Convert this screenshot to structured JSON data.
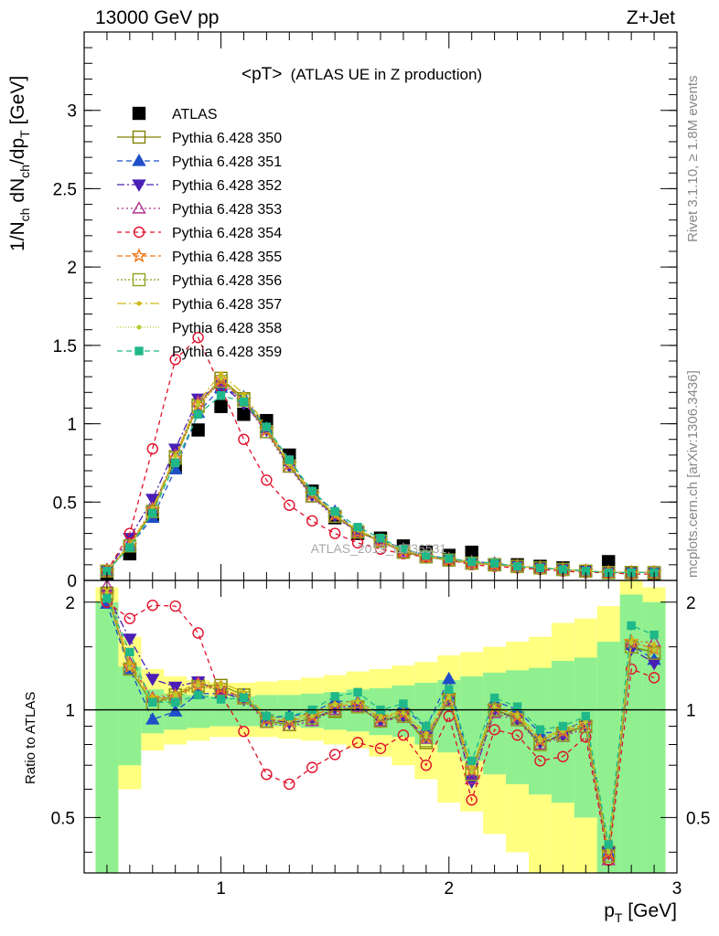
{
  "header": {
    "left": "13000 GeV pp",
    "right": "Z+Jet"
  },
  "plot_title_main": "<pT>",
  "plot_title_sub": "(ATLAS UE in Z production)",
  "watermark": "ATLAS_2019_I1736531",
  "side_text_top": "Rivet 3.1.10, ≥ 1.8M events",
  "side_text_bottom": "mcplots.cern.ch [arXiv:1306.3436]",
  "ylabel_top": {
    "a": "1/N",
    "a_sub": "ch",
    "b": " dN",
    "b_sub": "ch",
    "c": "/dp",
    "c_sub": "T",
    "d": " [GeV]"
  },
  "ylabel_bottom": "Ratio to ATLAS",
  "xlabel": {
    "p": "p",
    "sub": "T",
    "rest": " [GeV]"
  },
  "chart_data": [
    {
      "type": "line",
      "panel": "main",
      "xlim": [
        0.4,
        3.0
      ],
      "ylim": [
        0,
        3.5
      ],
      "x_ticks": [
        "1",
        "2",
        "3"
      ],
      "y_ticks": [
        "0",
        "0.5",
        "1",
        "1.5",
        "2",
        "2.5",
        "3"
      ],
      "legend_position": "top-left",
      "x": [
        0.5,
        0.6,
        0.7,
        0.8,
        0.9,
        1.0,
        1.1,
        1.2,
        1.3,
        1.4,
        1.5,
        1.6,
        1.7,
        1.8,
        1.9,
        2.0,
        2.1,
        2.2,
        2.3,
        2.4,
        2.5,
        2.6,
        2.7,
        2.8,
        2.9
      ],
      "series": [
        {
          "name": "ATLAS",
          "color": "#000000",
          "marker": "square-filled",
          "values": [
            0.03,
            0.17,
            0.42,
            0.72,
            0.96,
            1.11,
            1.06,
            1.02,
            0.8,
            0.57,
            0.4,
            0.3,
            0.27,
            0.22,
            0.18,
            0.16,
            0.18,
            0.1,
            0.1,
            0.09,
            0.08,
            0.06,
            0.12,
            0.05,
            0.04
          ]
        },
        {
          "name": "Pythia 6.428 350",
          "color": "#808000",
          "marker": "square-open",
          "dash": "",
          "values": [
            0.06,
            0.22,
            0.44,
            0.79,
            1.12,
            1.29,
            1.16,
            0.95,
            0.73,
            0.54,
            0.41,
            0.31,
            0.25,
            0.18,
            0.15,
            0.13,
            0.11,
            0.1,
            0.09,
            0.08,
            0.07,
            0.06,
            0.05,
            0.05,
            0.05
          ]
        },
        {
          "name": "Pythia 6.428 351",
          "color": "#1f4fc8",
          "marker": "triangle-up-filled",
          "dash": "6,4",
          "values": [
            0.06,
            0.22,
            0.4,
            0.71,
            1.07,
            1.23,
            1.17,
            0.97,
            0.76,
            0.56,
            0.44,
            0.31,
            0.26,
            0.2,
            0.16,
            0.14,
            0.12,
            0.11,
            0.09,
            0.08,
            0.07,
            0.06,
            0.05,
            0.05,
            0.05
          ]
        },
        {
          "name": "Pythia 6.428 352",
          "color": "#4a1fb4",
          "marker": "triangle-down-filled",
          "dash": "8,3,2,3",
          "values": [
            0.06,
            0.27,
            0.52,
            0.84,
            1.16,
            1.25,
            1.13,
            0.96,
            0.73,
            0.54,
            0.41,
            0.31,
            0.25,
            0.19,
            0.15,
            0.13,
            0.11,
            0.1,
            0.09,
            0.08,
            0.07,
            0.06,
            0.05,
            0.05,
            0.05
          ]
        },
        {
          "name": "Pythia 6.428 353",
          "color": "#b0308a",
          "marker": "triangle-up-open",
          "dash": "2,3",
          "values": [
            0.07,
            0.23,
            0.46,
            0.8,
            1.14,
            1.27,
            1.14,
            0.94,
            0.72,
            0.53,
            0.4,
            0.31,
            0.25,
            0.18,
            0.15,
            0.13,
            0.11,
            0.1,
            0.09,
            0.08,
            0.07,
            0.06,
            0.05,
            0.05,
            0.05
          ]
        },
        {
          "name": "Pythia 6.428 354",
          "color": "#e0102a",
          "marker": "circle-open",
          "dash": "5,4",
          "values": [
            0.06,
            0.3,
            0.84,
            1.41,
            1.55,
            1.23,
            0.9,
            0.64,
            0.48,
            0.38,
            0.3,
            0.24,
            0.2,
            0.17,
            0.15,
            0.13,
            0.1,
            0.09,
            0.08,
            0.07,
            0.06,
            0.05,
            0.05,
            0.04,
            0.04
          ]
        },
        {
          "name": "Pythia 6.428 355",
          "color": "#f07818",
          "marker": "star-open",
          "dash": "6,3",
          "values": [
            0.06,
            0.22,
            0.45,
            0.78,
            1.12,
            1.28,
            1.15,
            0.96,
            0.74,
            0.55,
            0.42,
            0.31,
            0.25,
            0.19,
            0.15,
            0.13,
            0.11,
            0.1,
            0.09,
            0.08,
            0.07,
            0.06,
            0.05,
            0.05,
            0.05
          ]
        },
        {
          "name": "Pythia 6.428 356",
          "color": "#90a020",
          "marker": "square-open",
          "dash": "2,2",
          "values": [
            0.06,
            0.22,
            0.44,
            0.78,
            1.11,
            1.27,
            1.15,
            0.95,
            0.73,
            0.54,
            0.41,
            0.31,
            0.25,
            0.18,
            0.15,
            0.13,
            0.11,
            0.1,
            0.09,
            0.08,
            0.07,
            0.06,
            0.05,
            0.05,
            0.05
          ]
        },
        {
          "name": "Pythia 6.428 357",
          "color": "#d0b818",
          "marker": "dot",
          "dash": "10,3,2,3",
          "values": [
            0.06,
            0.23,
            0.46,
            0.8,
            1.14,
            1.32,
            1.19,
            0.98,
            0.75,
            0.56,
            0.42,
            0.32,
            0.26,
            0.19,
            0.16,
            0.14,
            0.12,
            0.1,
            0.09,
            0.08,
            0.07,
            0.06,
            0.05,
            0.05,
            0.05
          ]
        },
        {
          "name": "Pythia 6.428 358",
          "color": "#b8cc30",
          "marker": "dot",
          "dash": "1,2",
          "values": [
            0.06,
            0.22,
            0.44,
            0.79,
            1.12,
            1.29,
            1.17,
            0.97,
            0.74,
            0.55,
            0.42,
            0.32,
            0.26,
            0.19,
            0.15,
            0.13,
            0.11,
            0.1,
            0.09,
            0.08,
            0.07,
            0.06,
            0.05,
            0.05,
            0.05
          ]
        },
        {
          "name": "Pythia 6.428 359",
          "color": "#20b888",
          "marker": "square-filled-small",
          "dash": "6,4",
          "values": [
            0.06,
            0.21,
            0.43,
            0.75,
            1.06,
            1.18,
            1.14,
            0.98,
            0.77,
            0.57,
            0.44,
            0.34,
            0.27,
            0.2,
            0.16,
            0.14,
            0.12,
            0.11,
            0.09,
            0.08,
            0.07,
            0.06,
            0.05,
            0.05,
            0.05
          ]
        }
      ]
    },
    {
      "type": "line",
      "panel": "ratio",
      "xlim": [
        0.4,
        3.0
      ],
      "ylim": [
        0.35,
        2.3
      ],
      "x_ticks": [
        "1",
        "2",
        "3"
      ],
      "y_ticks": [
        "0.5",
        "1",
        "2"
      ],
      "reference_line": 1,
      "bin_edges": [
        0.45,
        0.55,
        0.65,
        0.75,
        0.85,
        0.95,
        1.05,
        1.15,
        1.25,
        1.35,
        1.45,
        1.55,
        1.65,
        1.75,
        1.85,
        1.95,
        2.05,
        2.15,
        2.25,
        2.35,
        2.45,
        2.55,
        2.65,
        2.75,
        2.85,
        2.95
      ],
      "band_yellow_low": [
        0.35,
        0.6,
        0.77,
        0.8,
        0.82,
        0.84,
        0.84,
        0.84,
        0.83,
        0.82,
        0.8,
        0.78,
        0.74,
        0.7,
        0.64,
        0.55,
        0.52,
        0.45,
        0.4,
        0.35,
        0.35,
        0.35,
        0.35,
        0.35,
        0.35
      ],
      "band_yellow_high": [
        2.2,
        1.6,
        1.3,
        1.24,
        1.21,
        1.19,
        1.19,
        1.2,
        1.21,
        1.23,
        1.25,
        1.28,
        1.3,
        1.33,
        1.36,
        1.42,
        1.45,
        1.5,
        1.55,
        1.6,
        1.75,
        1.8,
        1.95,
        2.3,
        2.2
      ],
      "band_green_low": [
        0.35,
        0.7,
        0.86,
        0.88,
        0.89,
        0.9,
        0.9,
        0.9,
        0.9,
        0.89,
        0.88,
        0.87,
        0.85,
        0.84,
        0.8,
        0.76,
        0.72,
        0.66,
        0.62,
        0.58,
        0.55,
        0.5,
        0.35,
        0.35,
        0.35
      ],
      "band_green_high": [
        2.0,
        1.32,
        1.14,
        1.11,
        1.1,
        1.09,
        1.09,
        1.1,
        1.1,
        1.11,
        1.12,
        1.14,
        1.15,
        1.17,
        1.19,
        1.21,
        1.24,
        1.27,
        1.29,
        1.31,
        1.37,
        1.4,
        1.55,
        2.1,
        2.0
      ],
      "x": [
        0.5,
        0.6,
        0.7,
        0.8,
        0.9,
        1.0,
        1.1,
        1.2,
        1.3,
        1.4,
        1.5,
        1.6,
        1.7,
        1.8,
        1.9,
        2.0,
        2.1,
        2.2,
        2.3,
        2.4,
        2.5,
        2.6,
        2.7,
        2.8,
        2.9
      ],
      "series": [
        {
          "name": "Pythia 6.428 350",
          "color": "#808000",
          "marker": "square-open",
          "dash": "",
          "values": [
            2.12,
            1.3,
            1.04,
            1.1,
            1.17,
            1.17,
            1.1,
            0.93,
            0.91,
            0.95,
            0.99,
            1.02,
            0.93,
            0.97,
            0.81,
            1.07,
            0.68,
            1.0,
            0.95,
            0.8,
            0.86,
            0.9,
            0.4,
            1.5,
            1.45
          ]
        },
        {
          "name": "Pythia 6.428 351",
          "color": "#1f4fc8",
          "marker": "triangle-up-filled",
          "dash": "6,4",
          "values": [
            1.98,
            1.3,
            0.94,
            0.99,
            1.11,
            1.11,
            1.1,
            0.95,
            0.96,
            0.98,
            1.06,
            1.05,
            0.98,
            1.02,
            0.89,
            1.22,
            0.66,
            1.06,
            1.0,
            0.86,
            0.87,
            0.94,
            0.4,
            1.52,
            1.38
          ]
        },
        {
          "name": "Pythia 6.428 352",
          "color": "#4a1fb4",
          "marker": "triangle-down-filled",
          "dash": "8,3,2,3",
          "values": [
            2.1,
            1.58,
            1.22,
            1.16,
            1.2,
            1.12,
            1.07,
            0.94,
            0.92,
            0.94,
            1.01,
            1.03,
            0.93,
            0.96,
            0.84,
            1.07,
            0.63,
            1.0,
            0.94,
            0.81,
            0.85,
            0.9,
            0.4,
            1.48,
            1.35
          ]
        },
        {
          "name": "Pythia 6.428 353",
          "color": "#b0308a",
          "marker": "triangle-up-open",
          "dash": "2,3",
          "values": [
            2.22,
            1.35,
            1.08,
            1.1,
            1.19,
            1.14,
            1.07,
            0.92,
            0.9,
            0.93,
            1.0,
            1.02,
            0.93,
            0.95,
            0.83,
            1.06,
            0.64,
            0.98,
            0.93,
            0.8,
            0.84,
            0.89,
            0.38,
            1.55,
            1.55
          ]
        },
        {
          "name": "Pythia 6.428 354",
          "color": "#e0102a",
          "marker": "circle-open",
          "dash": "5,4",
          "values": [
            2.0,
            1.8,
            1.96,
            1.95,
            1.64,
            1.1,
            0.87,
            0.66,
            0.62,
            0.69,
            0.75,
            0.81,
            0.78,
            0.85,
            0.7,
            0.96,
            0.56,
            0.88,
            0.85,
            0.72,
            0.74,
            0.84,
            0.38,
            1.3,
            1.23
          ]
        },
        {
          "name": "Pythia 6.428 355",
          "color": "#f07818",
          "marker": "star-open",
          "dash": "6,3",
          "values": [
            2.1,
            1.32,
            1.07,
            1.09,
            1.17,
            1.15,
            1.08,
            0.94,
            0.93,
            0.96,
            1.02,
            1.04,
            0.95,
            0.98,
            0.84,
            1.09,
            0.68,
            1.02,
            0.96,
            0.82,
            0.87,
            0.91,
            0.4,
            1.55,
            1.48
          ]
        },
        {
          "name": "Pythia 6.428 356",
          "color": "#90a020",
          "marker": "square-open",
          "dash": "2,2",
          "values": [
            2.1,
            1.3,
            1.04,
            1.08,
            1.16,
            1.14,
            1.08,
            0.93,
            0.91,
            0.95,
            1.0,
            1.02,
            0.93,
            0.96,
            0.82,
            1.06,
            0.66,
            1.0,
            0.94,
            0.8,
            0.85,
            0.9,
            0.39,
            1.5,
            1.44
          ]
        },
        {
          "name": "Pythia 6.428 357",
          "color": "#d0b818",
          "marker": "dot",
          "dash": "10,3,2,3",
          "values": [
            2.18,
            1.35,
            1.09,
            1.11,
            1.19,
            1.19,
            1.12,
            0.96,
            0.94,
            0.98,
            1.04,
            1.06,
            0.96,
            0.99,
            0.86,
            1.1,
            0.69,
            1.02,
            0.97,
            0.83,
            0.88,
            0.93,
            0.41,
            1.58,
            1.52
          ]
        },
        {
          "name": "Pythia 6.428 358",
          "color": "#b8cc30",
          "marker": "dot",
          "dash": "1,2",
          "values": [
            2.12,
            1.31,
            1.05,
            1.1,
            1.17,
            1.16,
            1.1,
            0.95,
            0.93,
            0.96,
            1.03,
            1.05,
            0.95,
            0.98,
            0.84,
            1.08,
            0.67,
            1.02,
            0.96,
            0.82,
            0.87,
            0.92,
            0.4,
            1.54,
            1.47
          ]
        },
        {
          "name": "Pythia 6.428 359",
          "color": "#20b888",
          "marker": "square-filled-small",
          "dash": "6,4",
          "values": [
            2.05,
            1.45,
            1.05,
            1.05,
            1.1,
            1.07,
            1.08,
            0.96,
            0.96,
            1.0,
            1.09,
            1.12,
            1.0,
            1.04,
            0.9,
            1.14,
            0.72,
            1.08,
            1.02,
            0.88,
            0.9,
            0.96,
            0.42,
            1.72,
            1.62
          ]
        }
      ]
    }
  ]
}
